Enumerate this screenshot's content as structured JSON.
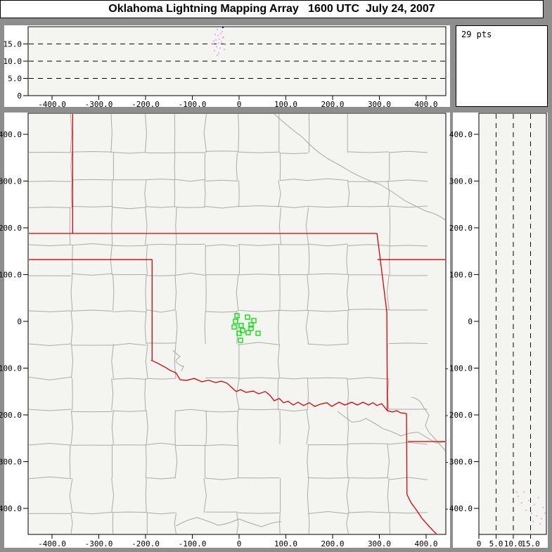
{
  "header": {
    "title": "Oklahoma Lightning Mapping Array   1600 UTC  July 24, 2007"
  },
  "stats": {
    "points_label": "29 pts",
    "points_count": 29
  },
  "colors": {
    "frame": "#8e8e8e",
    "panel_bg": "#ffffff",
    "plot_bg": "#f4f4f1",
    "axis": "#000000",
    "county_line": "#aaaaaa",
    "river_line": "#a8a8a8",
    "state_border": "#dd0000",
    "source_marker": "#00dd00",
    "faint_point": "#eeaaee",
    "dark_point": "#00007e"
  },
  "chart_data": [
    {
      "id": "height_ew",
      "type": "scatter",
      "position": "top",
      "xlim": [
        -450,
        450
      ],
      "ylim": [
        0,
        20
      ],
      "xticks": [
        {
          "v": -400,
          "label": "-400.0"
        },
        {
          "v": -300,
          "label": "-300.0"
        },
        {
          "v": -200,
          "label": "-200.0"
        },
        {
          "v": -100,
          "label": "-100.0"
        },
        {
          "v": 0,
          "label": "0"
        },
        {
          "v": 100,
          "label": "100.0"
        },
        {
          "v": 200,
          "label": "200.0"
        },
        {
          "v": 300,
          "label": "300.0"
        },
        {
          "v": 400,
          "label": "400.0"
        }
      ],
      "yticks": [
        {
          "v": 0,
          "label": "0"
        },
        {
          "v": 5,
          "label": "5.0"
        },
        {
          "v": 10,
          "label": "10.0"
        },
        {
          "v": 15,
          "label": "15.0"
        }
      ],
      "dashed_gridlines": [
        5,
        10,
        15
      ],
      "grid": "off",
      "points": [
        {
          "x": -55.6,
          "alt": 15.0
        },
        {
          "x": -51.1,
          "alt": 17.8
        },
        {
          "x": -46.6,
          "alt": 19.2
        },
        {
          "x": -42.1,
          "alt": 16.4
        },
        {
          "x": -48.1,
          "alt": 14.2
        },
        {
          "x": -37.6,
          "alt": 15.6
        },
        {
          "x": -52.6,
          "alt": 13.0
        },
        {
          "x": -43.6,
          "alt": 12.3
        },
        {
          "x": -39.1,
          "alt": 18.0
        },
        {
          "x": -33.1,
          "alt": 17.0
        },
        {
          "x": -30.1,
          "alt": 14.8
        },
        {
          "x": -49.6,
          "alt": 16.2
        },
        {
          "x": -40.6,
          "alt": 13.8
        },
        {
          "x": -36.1,
          "alt": 18.6
        },
        {
          "x": -54.1,
          "alt": 15.8
        },
        {
          "x": -45.1,
          "alt": 17.4
        },
        {
          "x": -31.6,
          "alt": 13.4
        },
        {
          "x": -46.6,
          "alt": 11.7
        },
        {
          "x": -44.0,
          "alt": 15.2
        },
        {
          "x": -35.0,
          "alt": 16.8
        }
      ],
      "dark_points": [
        {
          "x": -34.6,
          "alt": 19.8
        }
      ]
    },
    {
      "id": "plan_view",
      "type": "scatter",
      "position": "main",
      "xlim": [
        -450,
        450
      ],
      "ylim": [
        -450,
        450
      ],
      "xticks": [
        {
          "v": -400,
          "label": "-400.0"
        },
        {
          "v": -300,
          "label": "-300.0"
        },
        {
          "v": -200,
          "label": "-200.0"
        },
        {
          "v": -100,
          "label": "-100.0"
        },
        {
          "v": 0,
          "label": "0"
        },
        {
          "v": 100,
          "label": "100.0"
        },
        {
          "v": 200,
          "label": "200.0"
        },
        {
          "v": 300,
          "label": "300.0"
        },
        {
          "v": 400,
          "label": "400.0"
        }
      ],
      "yticks": [
        {
          "v": 400,
          "label": "400.0"
        },
        {
          "v": 300,
          "label": "300.0"
        },
        {
          "v": 200,
          "label": "200.0"
        },
        {
          "v": 100,
          "label": "100.0"
        },
        {
          "v": 0,
          "label": "0"
        },
        {
          "v": -100,
          "label": "-100.0"
        },
        {
          "v": -200,
          "label": "-200.0"
        },
        {
          "v": -300,
          "label": "-300.0"
        },
        {
          "v": -400,
          "label": "-400.0"
        }
      ],
      "grid": "off",
      "squares": [
        {
          "x": -4.5,
          "y": 12.0
        },
        {
          "x": -7.5,
          "y": 0.0
        },
        {
          "x": 18.0,
          "y": 9.0
        },
        {
          "x": 31.6,
          "y": 1.5
        },
        {
          "x": -10.5,
          "y": -12.0
        },
        {
          "x": 4.5,
          "y": -9.0
        },
        {
          "x": 25.6,
          "y": -7.5
        },
        {
          "x": 25.6,
          "y": -15.0
        },
        {
          "x": 0.0,
          "y": -25.6
        },
        {
          "x": 19.5,
          "y": -24.1
        },
        {
          "x": 40.6,
          "y": -25.6
        },
        {
          "x": 7.5,
          "y": -19.5
        },
        {
          "x": 3.0,
          "y": -40.6
        }
      ]
    },
    {
      "id": "height_ns",
      "type": "scatter",
      "position": "right",
      "xlim": [
        0,
        20
      ],
      "ylim": [
        -450,
        450
      ],
      "xticks": [
        {
          "v": 0,
          "label": "0"
        },
        {
          "v": 5,
          "label": "5.0"
        },
        {
          "v": 10,
          "label": "10.0"
        },
        {
          "v": 15,
          "label": "15.0"
        }
      ],
      "yticks": [
        {
          "v": 400,
          "label": "400.0"
        },
        {
          "v": 300,
          "label": "300.0"
        },
        {
          "v": 200,
          "label": "200.0"
        },
        {
          "v": 100,
          "label": "100.0"
        },
        {
          "v": 0,
          "label": "0"
        },
        {
          "v": -100,
          "label": "-100.0"
        },
        {
          "v": -200,
          "label": "-200.0"
        },
        {
          "v": -300,
          "label": "-300.0"
        },
        {
          "v": -400,
          "label": "-400.0"
        }
      ],
      "dashed_gridlines": [
        5,
        10,
        15
      ],
      "grid": "off",
      "points": [
        {
          "alt": 11.4,
          "y": -374
        },
        {
          "alt": 13.1,
          "y": -365
        },
        {
          "alt": 14.5,
          "y": -383
        },
        {
          "alt": 16.1,
          "y": -392
        },
        {
          "alt": 17.3,
          "y": -377
        },
        {
          "alt": 18.6,
          "y": -398
        },
        {
          "alt": 13.7,
          "y": -404
        },
        {
          "alt": 15.3,
          "y": -410
        },
        {
          "alt": 16.7,
          "y": -416
        },
        {
          "alt": 18.2,
          "y": -422
        },
        {
          "alt": 12.4,
          "y": -388
        },
        {
          "alt": 15.7,
          "y": -428
        },
        {
          "alt": 19.2,
          "y": -410
        },
        {
          "alt": 11.0,
          "y": -365
        },
        {
          "alt": 17.8,
          "y": -433
        }
      ]
    }
  ],
  "map": {
    "state_borders_km": [
      [
        [
          -451,
          188
        ],
        [
          295,
          188
        ]
      ],
      [
        [
          -356,
          445
        ],
        [
          -356,
          188
        ]
      ],
      [
        [
          -451,
          132
        ],
        [
          -186,
          132
        ]
      ],
      [
        [
          -186,
          132
        ],
        [
          -186,
          -83
        ]
      ],
      [
        [
          -188,
          -83
        ],
        [
          -173,
          -90
        ],
        [
          -158,
          -98
        ],
        [
          -147,
          -105
        ],
        [
          -135,
          -110
        ],
        [
          -126,
          -125
        ],
        [
          -111,
          -126
        ],
        [
          -96,
          -122
        ],
        [
          -80,
          -129
        ],
        [
          -65,
          -126
        ],
        [
          -50,
          -131
        ],
        [
          -38,
          -128
        ],
        [
          -26,
          -132
        ],
        [
          -14,
          -143
        ],
        [
          -6,
          -150
        ],
        [
          3,
          -146
        ],
        [
          15,
          -152
        ],
        [
          30,
          -149
        ],
        [
          42,
          -155
        ],
        [
          56,
          -150
        ],
        [
          66,
          -158
        ],
        [
          75,
          -170
        ],
        [
          86,
          -165
        ],
        [
          95,
          -174
        ],
        [
          105,
          -171
        ],
        [
          116,
          -179
        ],
        [
          126,
          -173
        ],
        [
          138,
          -180
        ],
        [
          150,
          -174
        ],
        [
          162,
          -182
        ],
        [
          174,
          -177
        ],
        [
          188,
          -174
        ],
        [
          198,
          -182
        ],
        [
          214,
          -173
        ],
        [
          226,
          -179
        ],
        [
          241,
          -173
        ],
        [
          253,
          -179
        ],
        [
          265,
          -173
        ],
        [
          277,
          -179
        ],
        [
          286,
          -174
        ],
        [
          295,
          -180
        ],
        [
          305,
          -176
        ],
        [
          317,
          -191
        ],
        [
          328,
          -194
        ],
        [
          337,
          -191
        ],
        [
          346,
          -196
        ],
        [
          358,
          -197
        ]
      ],
      [
        [
          295,
          188
        ],
        [
          316,
          20
        ],
        [
          317,
          -191
        ]
      ],
      [
        [
          296,
          132
        ],
        [
          451,
          132
        ]
      ],
      [
        [
          358,
          -197
        ],
        [
          359,
          -370
        ],
        [
          368,
          -388
        ],
        [
          379,
          -403
        ],
        [
          391,
          -421
        ],
        [
          406,
          -438
        ],
        [
          418,
          -451
        ],
        [
          429,
          -460
        ]
      ],
      [
        [
          361,
          -257
        ],
        [
          451,
          -257
        ]
      ]
    ]
  }
}
